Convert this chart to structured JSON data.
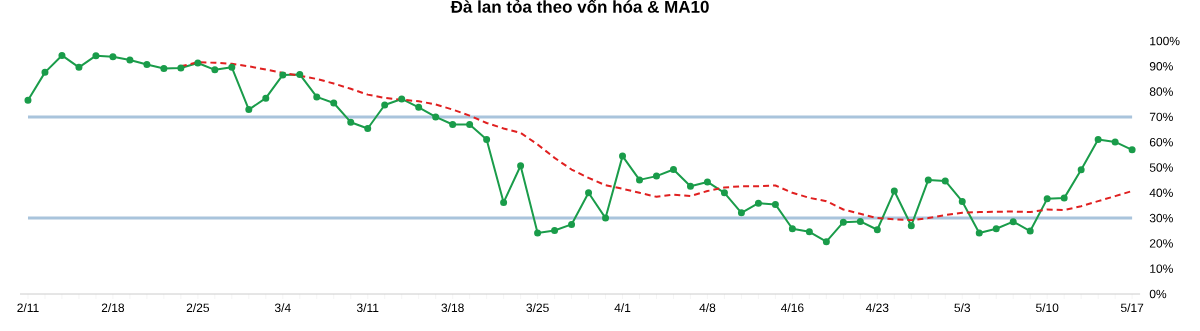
{
  "chart_data": {
    "type": "line",
    "title": "Đà lan tỏa theo vốn hóa & MA10",
    "categories": [
      "2/11",
      null,
      null,
      null,
      null,
      "2/18",
      null,
      null,
      null,
      null,
      "2/25",
      null,
      null,
      null,
      null,
      "3/4",
      null,
      null,
      null,
      null,
      "3/11",
      null,
      null,
      null,
      null,
      "3/18",
      null,
      null,
      null,
      null,
      "3/25",
      null,
      null,
      null,
      null,
      "4/1",
      null,
      null,
      null,
      null,
      "4/8",
      null,
      null,
      null,
      null,
      "4/16",
      null,
      null,
      null,
      null,
      "4/23",
      null,
      null,
      null,
      null,
      "5/3",
      null,
      null,
      null,
      null,
      "5/10",
      null,
      null,
      null,
      null,
      "5/17"
    ],
    "series": [
      {
        "color": "#1a9c4a",
        "marker": "circle",
        "line_style": "solid",
        "values": [
          76.6,
          87.6,
          94.3,
          89.6,
          94.2,
          93.8,
          92.5,
          90.7,
          89.1,
          89.3,
          91.3,
          88.6,
          89.6,
          72.9,
          77.4,
          86.6,
          86.8,
          77.9,
          75.5,
          67.9,
          65.4,
          74.7,
          77.1,
          73.8,
          70,
          67,
          67,
          61.1,
          36.2,
          50.7,
          24.1,
          25.1,
          27.5,
          40,
          30,
          54.5,
          45.1,
          46.6,
          49.2,
          42.6,
          44.3,
          40,
          32.1,
          35.9,
          35.4,
          25.8,
          24.6,
          20.7,
          28.4,
          28.7,
          25.4,
          40.7,
          27,
          45.1,
          44.7,
          36.6,
          24.1,
          25.8,
          28.6,
          24.9,
          37.6,
          37.9,
          49.1,
          61.1,
          60.1,
          57
        ]
      },
      {
        "color": "#e02020",
        "marker": "none",
        "line_style": "dashed",
        "values": [
          null,
          null,
          null,
          null,
          null,
          null,
          null,
          null,
          null,
          90,
          91.6,
          91.4,
          91,
          90,
          88.7,
          87.4,
          86.3,
          85,
          83.2,
          81.1,
          78.8,
          77.5,
          76.8,
          76.2,
          74.9,
          72.9,
          70.5,
          67.6,
          65.4,
          63.7,
          59.1,
          53.8,
          49.2,
          45.9,
          43,
          41.6,
          40,
          38.4,
          39.3,
          38.7,
          40.7,
          42.1,
          42.6,
          42.6,
          42.9,
          40,
          38,
          36.7,
          33.4,
          31.7,
          30,
          29.5,
          29.2,
          30,
          31.2,
          32.1,
          32.4,
          32.5,
          32.6,
          32.4,
          33.4,
          33.2,
          34.7,
          36.7,
          38.7,
          40.7
        ]
      }
    ],
    "ylim": [
      0,
      100
    ],
    "yticks": [
      {
        "value": 0,
        "label": "0%"
      },
      {
        "value": 10,
        "label": "10%"
      },
      {
        "value": 20,
        "label": "20%"
      },
      {
        "value": 30,
        "label": "30%"
      },
      {
        "value": 40,
        "label": "40%"
      },
      {
        "value": 50,
        "label": "50%"
      },
      {
        "value": 60,
        "label": "60%"
      },
      {
        "value": 70,
        "label": "70%"
      },
      {
        "value": 80,
        "label": "80%"
      },
      {
        "value": 90,
        "label": "90%"
      },
      {
        "value": 100,
        "label": "100%"
      }
    ],
    "ref_lines": [
      {
        "axis": "y",
        "value": 70,
        "color": "#a9c4dc"
      },
      {
        "axis": "y",
        "value": 30,
        "color": "#a9c4dc"
      }
    ]
  }
}
